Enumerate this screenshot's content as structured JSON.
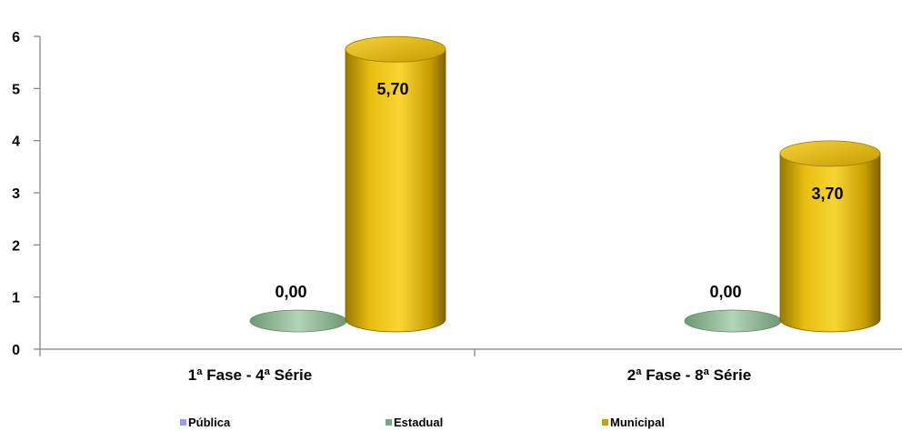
{
  "chart_data": {
    "type": "bar",
    "categories": [
      "1ª Fase - 4ª Série",
      "2ª Fase - 8ª Série"
    ],
    "series": [
      {
        "name": "Pública",
        "values": [
          null,
          null
        ],
        "color": "#9999ff"
      },
      {
        "name": "Estadual",
        "values": [
          0,
          0
        ],
        "color": "#7aa57f"
      },
      {
        "name": "Municipal",
        "values": [
          5.7,
          3.7
        ],
        "color": "#e6b800"
      }
    ],
    "data_labels": {
      "Estadual": [
        "0,00",
        "0,00"
      ],
      "Municipal": [
        "5,70",
        "3,70"
      ]
    },
    "ylim": [
      0,
      6
    ],
    "yticks": [
      "0",
      "1",
      "2",
      "3",
      "4",
      "5",
      "6"
    ],
    "legend_position": "bottom",
    "grid": false
  }
}
